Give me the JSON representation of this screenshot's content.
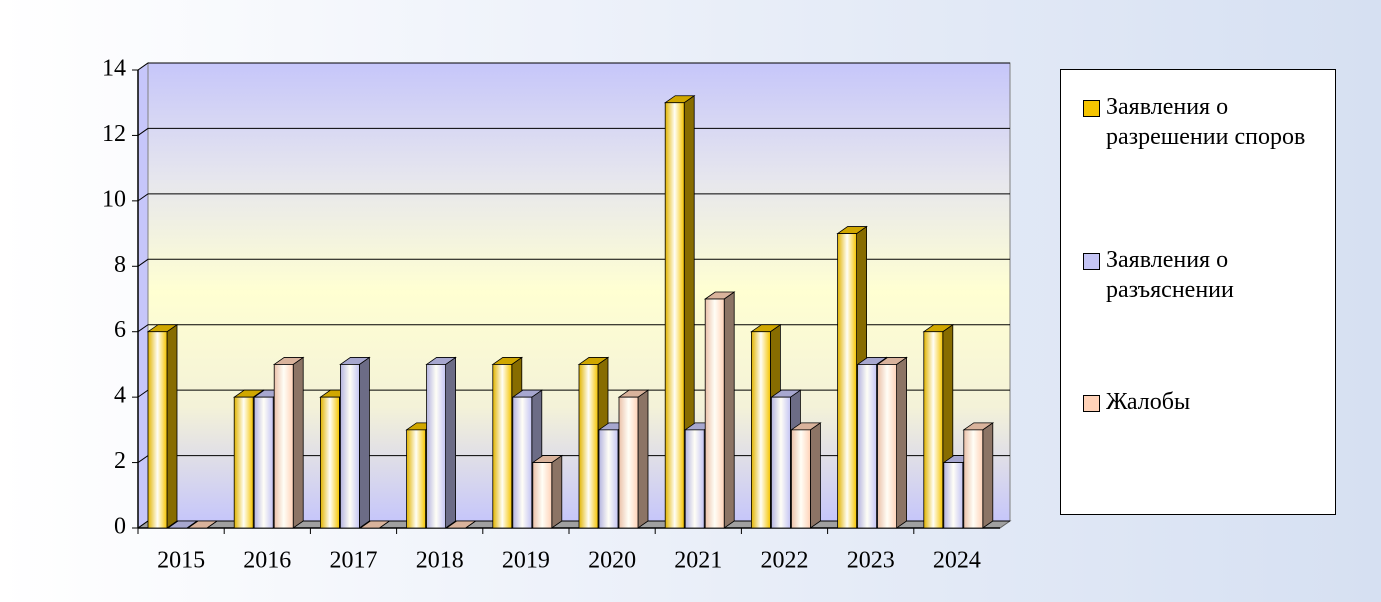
{
  "chart_data": {
    "type": "bar3d",
    "categories": [
      "2015",
      "2016",
      "2017",
      "2018",
      "2019",
      "2020",
      "2021",
      "2022",
      "2023",
      "2024"
    ],
    "series": [
      {
        "name": "Заявления о разрешении споров",
        "color": "#f5c400",
        "values": [
          6,
          4,
          4,
          3,
          5,
          5,
          13,
          6,
          9,
          6
        ]
      },
      {
        "name": "Заявления о разъяснении",
        "color": "#c4c4f4",
        "values": [
          0,
          4,
          5,
          5,
          4,
          3,
          3,
          4,
          5,
          2
        ]
      },
      {
        "name": "Жалобы",
        "color": "#ffd2b8",
        "values": [
          0,
          5,
          0,
          0,
          2,
          4,
          7,
          3,
          5,
          3
        ]
      }
    ],
    "ylim": [
      0,
      14
    ],
    "yticks": [
      0,
      2,
      4,
      6,
      8,
      10,
      12,
      14
    ],
    "grid": true,
    "legend": "right"
  }
}
